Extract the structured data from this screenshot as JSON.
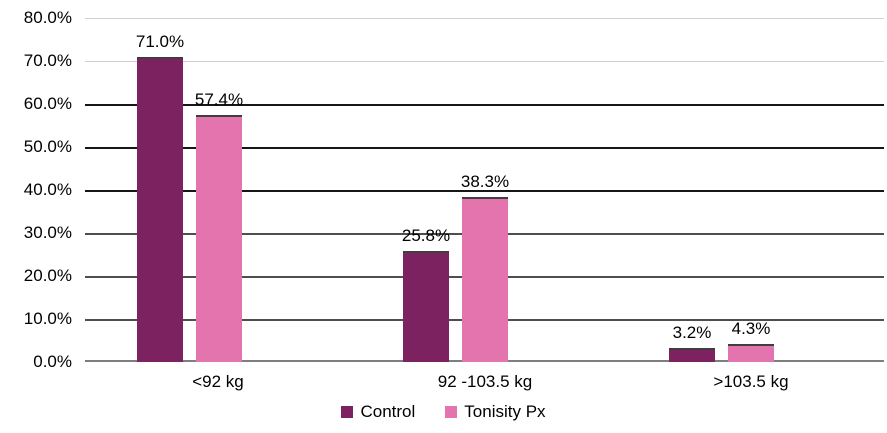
{
  "chart_data": {
    "type": "bar",
    "title": "",
    "categories": [
      "<92 kg",
      "92 -103.5 kg",
      ">103.5 kg"
    ],
    "series": [
      {
        "name": "Control",
        "color": "#7C2260",
        "values": [
          71.0,
          25.8,
          3.2
        ],
        "value_labels": [
          "71.0%",
          "25.8%",
          "3.2%"
        ]
      },
      {
        "name": "Tonisity Px",
        "color": "#E374AD",
        "values": [
          57.4,
          38.3,
          4.3
        ],
        "value_labels": [
          "57.4%",
          "38.3%",
          "4.3%"
        ]
      }
    ],
    "y_ticks": [
      "80.0%",
      "70.0%",
      "60.0%",
      "50.0%",
      "40.0%",
      "30.0%",
      "20.0%",
      "10.0%",
      "0.0%"
    ],
    "ylim": [
      0,
      80
    ],
    "grid": true,
    "legend_position": "bottom",
    "xlabel": "",
    "ylabel": ""
  }
}
